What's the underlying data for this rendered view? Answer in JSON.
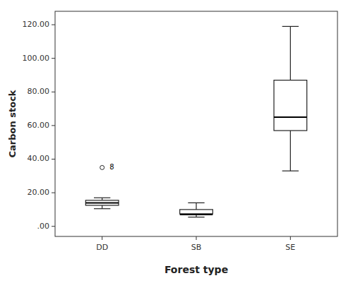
{
  "chart_data": {
    "type": "box",
    "categories": [
      "DD",
      "SB",
      "SE"
    ],
    "boxes": [
      {
        "q1": 12.5,
        "median": 14.0,
        "q3": 15.5,
        "whislo": 10.5,
        "whishi": 17.0,
        "fliers": [
          35.0
        ],
        "flier_labels": [
          "8"
        ]
      },
      {
        "q1": 7.5,
        "median": 7.0,
        "q3": 10.0,
        "whislo": 5.5,
        "whishi": 14.0,
        "fliers": [],
        "flier_labels": []
      },
      {
        "q1": 57.0,
        "median": 65.0,
        "q3": 87.0,
        "whislo": 33.0,
        "whishi": 119.0,
        "fliers": [],
        "flier_labels": []
      }
    ],
    "xlabel": "Forest type",
    "ylabel": "Carbon stock",
    "ylim": [
      -6,
      128
    ],
    "yticks": [
      {
        "value": 0,
        "label": ".00"
      },
      {
        "value": 20,
        "label": "20.00"
      },
      {
        "value": 40,
        "label": "40.00"
      },
      {
        "value": 60,
        "label": "60.00"
      },
      {
        "value": 80,
        "label": "80.00"
      },
      {
        "value": 100,
        "label": "100.00"
      },
      {
        "value": 120,
        "label": "120.00"
      }
    ],
    "color": "white",
    "grid": false
  }
}
